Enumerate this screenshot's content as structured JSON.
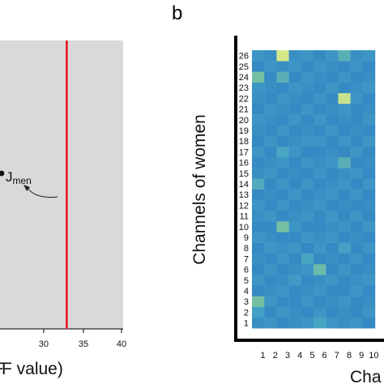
{
  "panel_a": {
    "annotation": {
      "base": "J",
      "subscript": "men"
    },
    "xlabel": "F value)",
    "colors": {
      "background": "#d9d9d9",
      "threshold_line": "#e8141c",
      "dot": "#111111"
    }
  },
  "panel_b": {
    "letter": "b",
    "ylabel": "Channels of women",
    "xlabel": "Cha",
    "colors": {
      "low": "#2f7fc1",
      "mid": "#45a3c6",
      "high": "#7ec59a",
      "peak": "#e4ef86",
      "axis": "#000000"
    }
  },
  "chart_data": [
    {
      "type": "line",
      "panel": "a",
      "x_ticks": [
        30,
        35,
        40
      ],
      "xlim": [
        24.5,
        40
      ],
      "threshold_line_x": 32.9,
      "points": [
        {
          "x": 24.9,
          "label": "Jmen"
        }
      ],
      "xlabel": "F value)",
      "grid": false
    },
    {
      "type": "heatmap",
      "panel": "b",
      "rows": [
        "1",
        "2",
        "3",
        "4",
        "5",
        "6",
        "7",
        "8",
        "9",
        "10",
        "11",
        "12",
        "13",
        "14",
        "15",
        "16",
        "17",
        "18",
        "19",
        "20",
        "21",
        "22",
        "23",
        "24",
        "25",
        "26"
      ],
      "cols": [
        "1",
        "2",
        "3",
        "4",
        "5",
        "6",
        "7",
        "8",
        "9",
        "10"
      ],
      "ylabel": "Channels of women",
      "xlabel": "Cha",
      "values": [
        [
          0.15,
          0.2,
          0.1,
          0.15,
          0.2,
          0.35,
          0.2,
          0.15,
          0.2,
          0.1
        ],
        [
          0.3,
          0.1,
          0.2,
          0.15,
          0.1,
          0.2,
          0.1,
          0.15,
          0.1,
          0.2
        ],
        [
          0.6,
          0.2,
          0.1,
          0.1,
          0.2,
          0.1,
          0.15,
          0.2,
          0.1,
          0.15
        ],
        [
          0.1,
          0.15,
          0.2,
          0.1,
          0.15,
          0.2,
          0.1,
          0.1,
          0.2,
          0.1
        ],
        [
          0.2,
          0.1,
          0.15,
          0.25,
          0.1,
          0.15,
          0.2,
          0.1,
          0.15,
          0.2
        ],
        [
          0.1,
          0.2,
          0.1,
          0.15,
          0.2,
          0.55,
          0.1,
          0.2,
          0.1,
          0.15
        ],
        [
          0.15,
          0.1,
          0.2,
          0.1,
          0.35,
          0.1,
          0.15,
          0.1,
          0.2,
          0.1
        ],
        [
          0.1,
          0.2,
          0.15,
          0.2,
          0.1,
          0.2,
          0.1,
          0.3,
          0.1,
          0.2
        ],
        [
          0.2,
          0.15,
          0.1,
          0.1,
          0.2,
          0.15,
          0.2,
          0.1,
          0.15,
          0.1
        ],
        [
          0.1,
          0.1,
          0.6,
          0.2,
          0.1,
          0.1,
          0.15,
          0.2,
          0.1,
          0.2
        ],
        [
          0.15,
          0.2,
          0.1,
          0.15,
          0.2,
          0.1,
          0.2,
          0.1,
          0.2,
          0.1
        ],
        [
          0.2,
          0.1,
          0.2,
          0.1,
          0.15,
          0.2,
          0.1,
          0.15,
          0.1,
          0.15
        ],
        [
          0.1,
          0.15,
          0.1,
          0.2,
          0.1,
          0.15,
          0.2,
          0.1,
          0.2,
          0.1
        ],
        [
          0.4,
          0.1,
          0.2,
          0.1,
          0.2,
          0.1,
          0.15,
          0.2,
          0.1,
          0.2
        ],
        [
          0.15,
          0.2,
          0.1,
          0.15,
          0.1,
          0.2,
          0.1,
          0.15,
          0.2,
          0.1
        ],
        [
          0.1,
          0.15,
          0.2,
          0.1,
          0.2,
          0.15,
          0.2,
          0.45,
          0.1,
          0.15
        ],
        [
          0.2,
          0.1,
          0.35,
          0.2,
          0.1,
          0.1,
          0.15,
          0.1,
          0.2,
          0.1
        ],
        [
          0.1,
          0.2,
          0.1,
          0.15,
          0.2,
          0.2,
          0.1,
          0.2,
          0.1,
          0.2
        ],
        [
          0.15,
          0.1,
          0.2,
          0.1,
          0.15,
          0.1,
          0.2,
          0.1,
          0.15,
          0.1
        ],
        [
          0.2,
          0.15,
          0.1,
          0.2,
          0.1,
          0.2,
          0.1,
          0.15,
          0.1,
          0.2
        ],
        [
          0.1,
          0.2,
          0.15,
          0.1,
          0.2,
          0.1,
          0.15,
          0.2,
          0.1,
          0.15
        ],
        [
          0.15,
          0.1,
          0.2,
          0.15,
          0.1,
          0.2,
          0.1,
          0.9,
          0.2,
          0.1
        ],
        [
          0.2,
          0.15,
          0.1,
          0.2,
          0.15,
          0.1,
          0.2,
          0.1,
          0.15,
          0.2
        ],
        [
          0.6,
          0.1,
          0.45,
          0.1,
          0.2,
          0.15,
          0.1,
          0.2,
          0.1,
          0.15
        ],
        [
          0.1,
          0.2,
          0.15,
          0.2,
          0.1,
          0.2,
          0.15,
          0.1,
          0.2,
          0.1
        ],
        [
          0.2,
          0.15,
          0.95,
          0.15,
          0.2,
          0.1,
          0.2,
          0.45,
          0.15,
          0.2
        ]
      ]
    }
  ]
}
